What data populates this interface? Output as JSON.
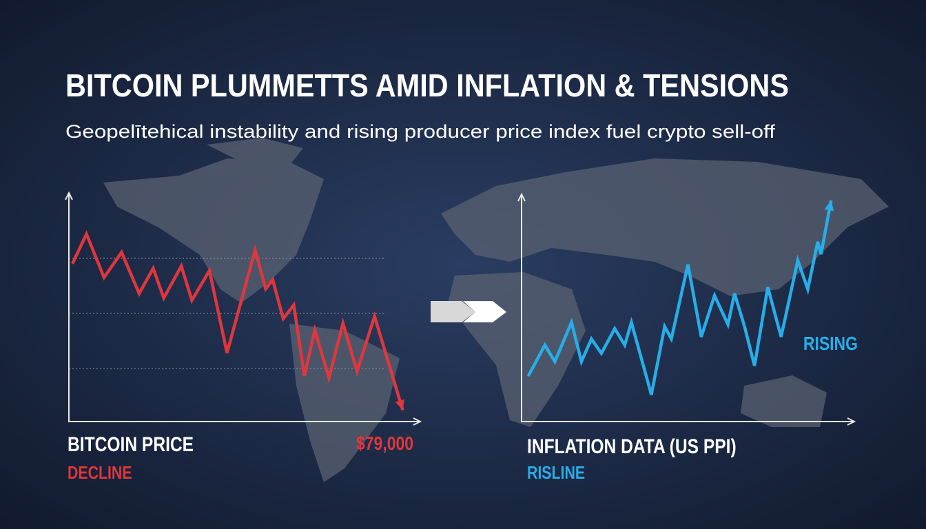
{
  "header": {
    "title": "BITCOIN PLUMMETTS AMID INFLATION & TENSIONS",
    "subtitle": "Geopelītehical instability and rising producer price index fuel crypto sell-off"
  },
  "chart_data": [
    {
      "type": "line",
      "label": "BITCOIN PRICE",
      "sublabel": "DECLINE",
      "annotation": "$79,000",
      "color": "#e0373c",
      "x": [
        1,
        5,
        10,
        15,
        20,
        24,
        27,
        32,
        35,
        40,
        45,
        53,
        56,
        58,
        61,
        64,
        67,
        70,
        74,
        78,
        82,
        87,
        95
      ],
      "values": [
        69,
        82,
        63,
        74,
        56,
        67,
        54,
        68,
        53,
        66,
        30,
        75,
        58,
        62,
        45,
        51,
        20,
        40,
        19,
        43,
        22,
        46,
        5
      ],
      "xlim": [
        0,
        100
      ],
      "ylim": [
        0,
        100
      ]
    },
    {
      "type": "line",
      "label": "INFLATION DATA (US PPI)",
      "sublabel": "RISLINE",
      "annotation": "RISING",
      "color": "#27aee8",
      "x": [
        2,
        7,
        10,
        15,
        18,
        21,
        24,
        28,
        31,
        33,
        39,
        43,
        45,
        50,
        54,
        58,
        62,
        64,
        67,
        70,
        74,
        78,
        83,
        86,
        89,
        90,
        93
      ],
      "values": [
        22,
        37,
        29,
        48,
        29,
        40,
        33,
        45,
        37,
        48,
        13,
        46,
        40,
        76,
        41,
        61,
        47,
        62,
        46,
        27,
        65,
        41,
        78,
        64,
        87,
        81,
        107
      ],
      "xlim": [
        0,
        100
      ],
      "ylim": [
        0,
        110
      ]
    }
  ]
}
